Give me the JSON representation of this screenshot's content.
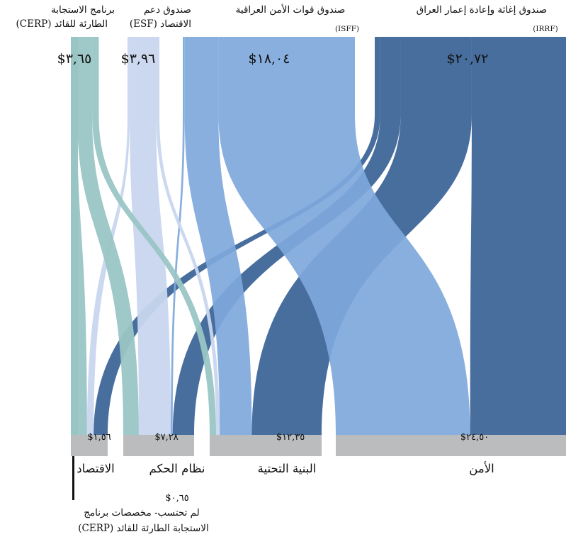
{
  "chart_data": {
    "type": "sankey",
    "value_prefix": "$",
    "sources": [
      {
        "id": "irrf",
        "name": "صندوق إغاثة وإعادة إعمار العراق",
        "abbr": "(IRRF)",
        "value_label": "$٢٠,٧٢",
        "value": 20.72,
        "color": "#3e6699"
      },
      {
        "id": "isff",
        "name": "صندوق قوات الأمن العراقية",
        "abbr": "(ISFF)",
        "value_label": "$١٨,٠٤",
        "value": 18.04,
        "color": "#7fa8dc"
      },
      {
        "id": "esf",
        "name": "صندوق دعم",
        "name2": "الاقتصاد (ESF)",
        "value_label": "$٣,٩٦",
        "value": 3.96,
        "color": "#c8d6ee"
      },
      {
        "id": "cerp",
        "name": "برنامج الاستجابة",
        "name2": "الطارئة للقائد (CERP)",
        "value_label": "$٣,٦٥",
        "value": 3.65,
        "color": "#9ac5c5"
      }
    ],
    "targets": [
      {
        "id": "security",
        "name": "الأمن",
        "value_label": "$٢٤,٥٠",
        "value": 24.5
      },
      {
        "id": "infrastructure",
        "name": "البنية التحتية",
        "value_label": "$١٢,٣٥",
        "value": 12.35
      },
      {
        "id": "governance",
        "name": "نظام الحكم",
        "value_label": "$٧,٢٨",
        "value": 7.28
      },
      {
        "id": "economy",
        "name": "الاقتصاد",
        "value_label": "$١,٥٦",
        "value": 1.56
      }
    ],
    "unallocated": {
      "value_label": "$٠,٦٥",
      "value": 0.65,
      "line1": "لم تحتسب- مخصصات برنامج",
      "line2": "الاستجابة الطارئة للقائد (CERP)"
    },
    "flows": [
      {
        "source": "irrf",
        "target": "security",
        "value": 10.2
      },
      {
        "source": "irrf",
        "target": "infrastructure",
        "value": 7.7
      },
      {
        "source": "irrf",
        "target": "governance",
        "value": 2.2
      },
      {
        "source": "irrf",
        "target": "economy",
        "value": 0.6
      },
      {
        "source": "isff",
        "target": "security",
        "value": 14.3
      },
      {
        "source": "isff",
        "target": "infrastructure",
        "value": 3.54
      },
      {
        "source": "isff",
        "target": "governance",
        "value": 0.2
      },
      {
        "source": "esf",
        "target": "infrastructure",
        "value": 0.4
      },
      {
        "source": "esf",
        "target": "governance",
        "value": 3.28
      },
      {
        "source": "esf",
        "target": "economy",
        "value": 0.28
      },
      {
        "source": "cerp",
        "target": "infrastructure",
        "value": 0.71
      },
      {
        "source": "cerp",
        "target": "governance",
        "value": 1.6
      },
      {
        "source": "cerp",
        "target": "economy",
        "value": 0.69
      },
      {
        "source": "cerp",
        "target": "unallocated",
        "value": 0.65
      }
    ],
    "target_bar_color": "#bbbcbe"
  }
}
